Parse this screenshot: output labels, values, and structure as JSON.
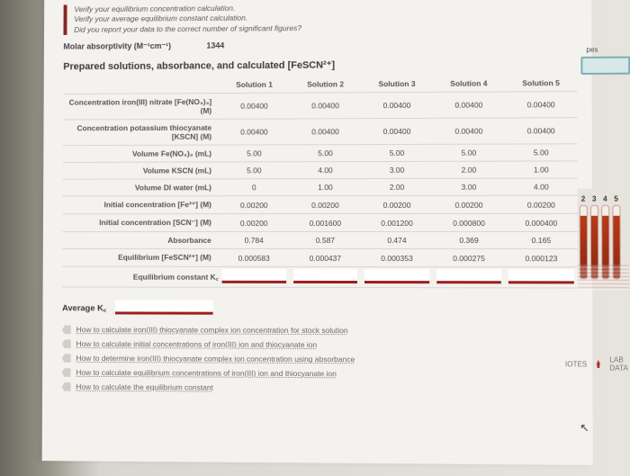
{
  "checklist": {
    "l1": "Verify your equilibrium concentration calculation.",
    "l2": "Verify your average equilibrium constant calculation.",
    "l3": "Did you report your data to the correct number of significant figures?"
  },
  "molar": {
    "label": "Molar absorptivity (M⁻¹cm⁻¹)",
    "value": "1344"
  },
  "section_title": "Prepared solutions, absorbance, and calculated [FeSCN²⁺]",
  "columns": [
    "Solution 1",
    "Solution 2",
    "Solution 3",
    "Solution 4",
    "Solution 5"
  ],
  "rows": [
    {
      "label": "Concentration iron(III) nitrate [Fe(NO₃)₃] (M)",
      "vals": [
        "0.00400",
        "0.00400",
        "0.00400",
        "0.00400",
        "0.00400"
      ]
    },
    {
      "label": "Concentration potassium thiocyanate [KSCN] (M)",
      "vals": [
        "0.00400",
        "0.00400",
        "0.00400",
        "0.00400",
        "0.00400"
      ]
    },
    {
      "label": "Volume Fe(NO₃)₃ (mL)",
      "vals": [
        "5.00",
        "5.00",
        "5.00",
        "5.00",
        "5.00"
      ]
    },
    {
      "label": "Volume KSCN (mL)",
      "vals": [
        "5.00",
        "4.00",
        "3.00",
        "2.00",
        "1.00"
      ]
    },
    {
      "label": "Volume DI water (mL)",
      "vals": [
        "0",
        "1.00",
        "2.00",
        "3.00",
        "4.00"
      ]
    },
    {
      "label": "Initial concentration [Fe³⁺] (M)",
      "vals": [
        "0.00200",
        "0.00200",
        "0.00200",
        "0.00200",
        "0.00200"
      ]
    },
    {
      "label": "Initial concentration [SCN⁻] (M)",
      "vals": [
        "0.00200",
        "0.001600",
        "0.001200",
        "0.000800",
        "0.000400"
      ]
    },
    {
      "label": "Absorbance",
      "vals": [
        "0.784",
        "0.587",
        "0.474",
        "0.369",
        "0.165"
      ]
    },
    {
      "label": "Equilibrium [FeSCN²⁺] (M)",
      "vals": [
        "0.000583",
        "0.000437",
        "0.000353",
        "0.000275",
        "0.000123"
      ]
    }
  ],
  "kc_label": "Equilibrium constant K꜀",
  "avg_label": "Average K꜀",
  "hints": [
    "How to calculate iron(III) thiocyanate complex ion concentration for stock solution",
    "How to calculate initial concentrations of iron(III) ion and thiocyanate ion",
    "How to determine iron(III) thiocyanate complex ion concentration using absorbance",
    "How to calculate equilibrium concentrations of iron(III) ion and thiocyanate ion",
    "How to calculate the equilibrium constant"
  ],
  "right": {
    "tubes": [
      "2",
      "3",
      "4",
      "5"
    ],
    "notes": "IOTES",
    "labdata": "LAB DATA",
    "wipes": "pes"
  },
  "colors": {
    "accent": "#9a1f1f",
    "text": "#3a3a3a",
    "grid": "#d9d6d0",
    "page_bg": "#f4f2ee"
  }
}
